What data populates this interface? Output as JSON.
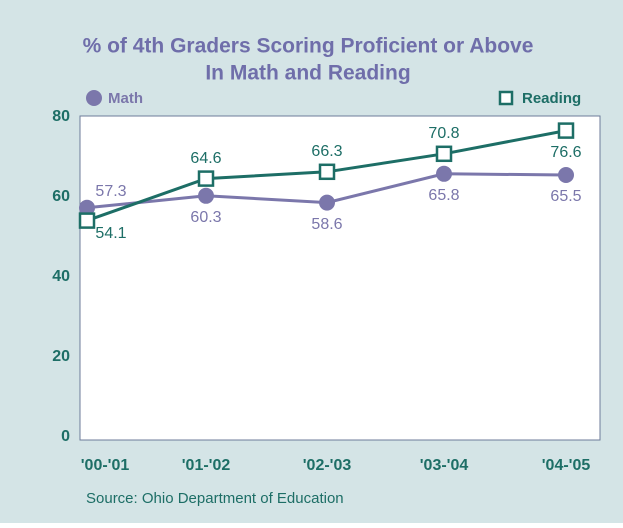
{
  "chart_data": {
    "type": "line",
    "title": [
      "% of 4th Graders Scoring Proficient or Above",
      "In Math and Reading"
    ],
    "categories": [
      "'00-'01",
      "'01-'02",
      "'02-'03",
      "'03-'04",
      "'04-'05"
    ],
    "series": [
      {
        "name": "Math",
        "color": "#7b77ab",
        "marker": "circle",
        "values": [
          57.3,
          60.3,
          58.6,
          65.8,
          65.5
        ]
      },
      {
        "name": "Reading",
        "color": "#1d6e66",
        "marker": "square",
        "values": [
          54.1,
          64.6,
          66.3,
          70.8,
          76.6
        ]
      }
    ],
    "ylim": [
      0,
      80
    ],
    "yticks": [
      0,
      20,
      40,
      60,
      80
    ],
    "grid": false,
    "source": "Source: Ohio Department of Education"
  }
}
